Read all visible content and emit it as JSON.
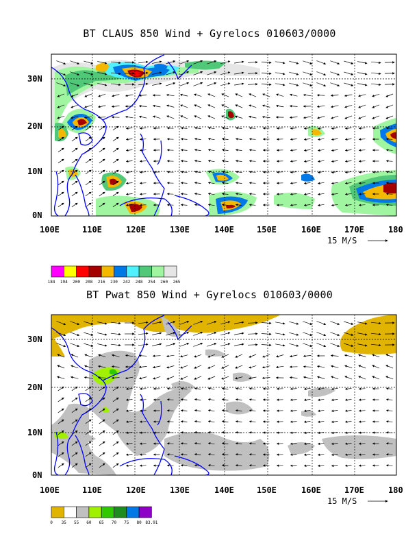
{
  "panels": [
    {
      "title": "BT CLAUS 850 Wind + Gyrelocs 010603/0000",
      "y_ticks": [
        "30N",
        "20N",
        "10N",
        "0N"
      ],
      "x_ticks": [
        "100E",
        "110E",
        "120E",
        "130E",
        "140E",
        "150E",
        "160E",
        "170E",
        "180"
      ],
      "vector_ref": "15 M/S",
      "colorbar": {
        "labels": [
          "184",
          "194",
          "200",
          "208",
          "216",
          "230",
          "242",
          "248",
          "254",
          "260",
          "265"
        ],
        "colors": [
          "#ff00ff",
          "#ffff00",
          "#ff0000",
          "#a50000",
          "#f5b800",
          "#0078e6",
          "#50f0ff",
          "#50c878",
          "#9ff5a0",
          "#e6e6e6"
        ]
      }
    },
    {
      "title": "BT Pwat 850 Wind + Gyrelocs 010603/0000",
      "y_ticks": [
        "30N",
        "20N",
        "10N",
        "0N"
      ],
      "x_ticks": [
        "100E",
        "110E",
        "120E",
        "130E",
        "140E",
        "150E",
        "160E",
        "170E",
        "180"
      ],
      "vector_ref": "15 M/S",
      "colorbar": {
        "labels": [
          "0",
          "35",
          "55",
          "60",
          "65",
          "70",
          "75",
          "80",
          "83.91"
        ],
        "colors": [
          "#e0b400",
          "#ffffff",
          "#c0c0c0",
          "#a0f000",
          "#32c800",
          "#1e8c1e",
          "#0078e6",
          "#8c00c8"
        ]
      }
    }
  ]
}
